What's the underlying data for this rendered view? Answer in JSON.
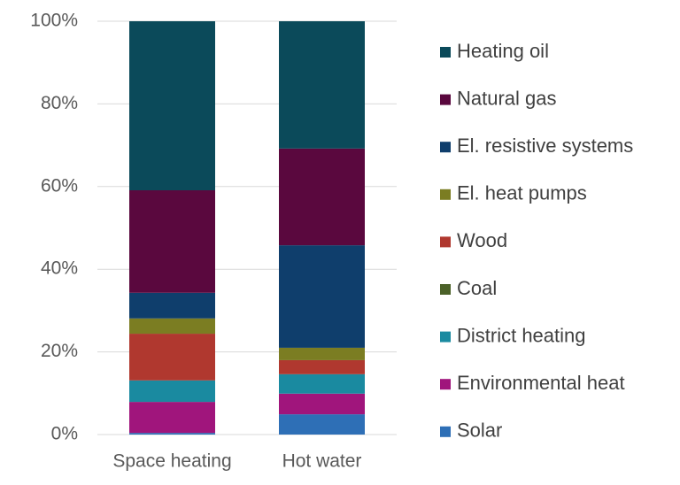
{
  "chart_data": {
    "type": "stacked_bar",
    "categories": [
      "Space heating",
      "Hot water"
    ],
    "series": [
      {
        "name": "Solar",
        "color": "#2e6fb6",
        "values": [
          0.4,
          4.9
        ]
      },
      {
        "name": "Environmental heat",
        "color": "#a0157c",
        "values": [
          7.5,
          5.0
        ]
      },
      {
        "name": "District heating",
        "color": "#1a8aa0",
        "values": [
          5.2,
          4.7
        ]
      },
      {
        "name": "Coal",
        "color": "#4b6128",
        "values": [
          0,
          0
        ]
      },
      {
        "name": "Wood",
        "color": "#b0382f",
        "values": [
          11.3,
          3.4
        ]
      },
      {
        "name": "El. heat pumps",
        "color": "#7b7d22",
        "values": [
          3.7,
          3.0
        ]
      },
      {
        "name": "El. resistive systems",
        "color": "#0f3e6c",
        "values": [
          6.2,
          24.8
        ]
      },
      {
        "name": "Natural gas",
        "color": "#5a083e",
        "values": [
          24.8,
          23.4
        ]
      },
      {
        "name": "Heating oil",
        "color": "#0b4a5a",
        "values": [
          40.9,
          30.8
        ]
      }
    ],
    "ylim": [
      0,
      100
    ],
    "yticks": [
      {
        "value": 0,
        "label": "0%"
      },
      {
        "value": 20,
        "label": "20%"
      },
      {
        "value": 40,
        "label": "40%"
      },
      {
        "value": 60,
        "label": "60%"
      },
      {
        "value": 80,
        "label": "80%"
      },
      {
        "value": 100,
        "label": "100%"
      }
    ],
    "grid": true,
    "legend": "right"
  }
}
